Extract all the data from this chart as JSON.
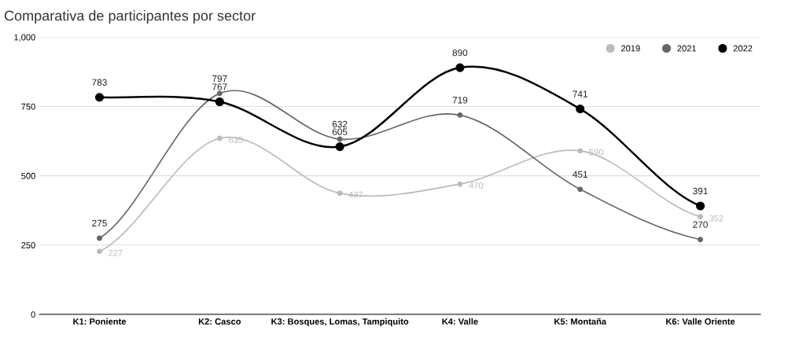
{
  "chart_data": {
    "type": "line",
    "title": "Comparativa de participantes por sector",
    "categories": [
      "K1: Poniente",
      "K2: Casco",
      "K3: Bosques, Lomas, Tampiquito",
      "K4: Valle",
      "K5: Montaña",
      "K6: Valle Oriente"
    ],
    "series": [
      {
        "name": "2019",
        "color": "#bbbbbb",
        "values": [
          227,
          635,
          437,
          470,
          590,
          352
        ]
      },
      {
        "name": "2021",
        "color": "#666666",
        "values": [
          275,
          797,
          632,
          719,
          451,
          270
        ]
      },
      {
        "name": "2022",
        "color": "#000000",
        "values": [
          783,
          767,
          605,
          890,
          741,
          391
        ]
      }
    ],
    "ylim": [
      0,
      1000
    ],
    "yticks": [
      0,
      250,
      500,
      750,
      {
        "value": 1000,
        "label": "1,000"
      }
    ],
    "grid": "y",
    "legend": "top right",
    "marker": "circle",
    "line_style": "solid",
    "data_labels": true
  }
}
